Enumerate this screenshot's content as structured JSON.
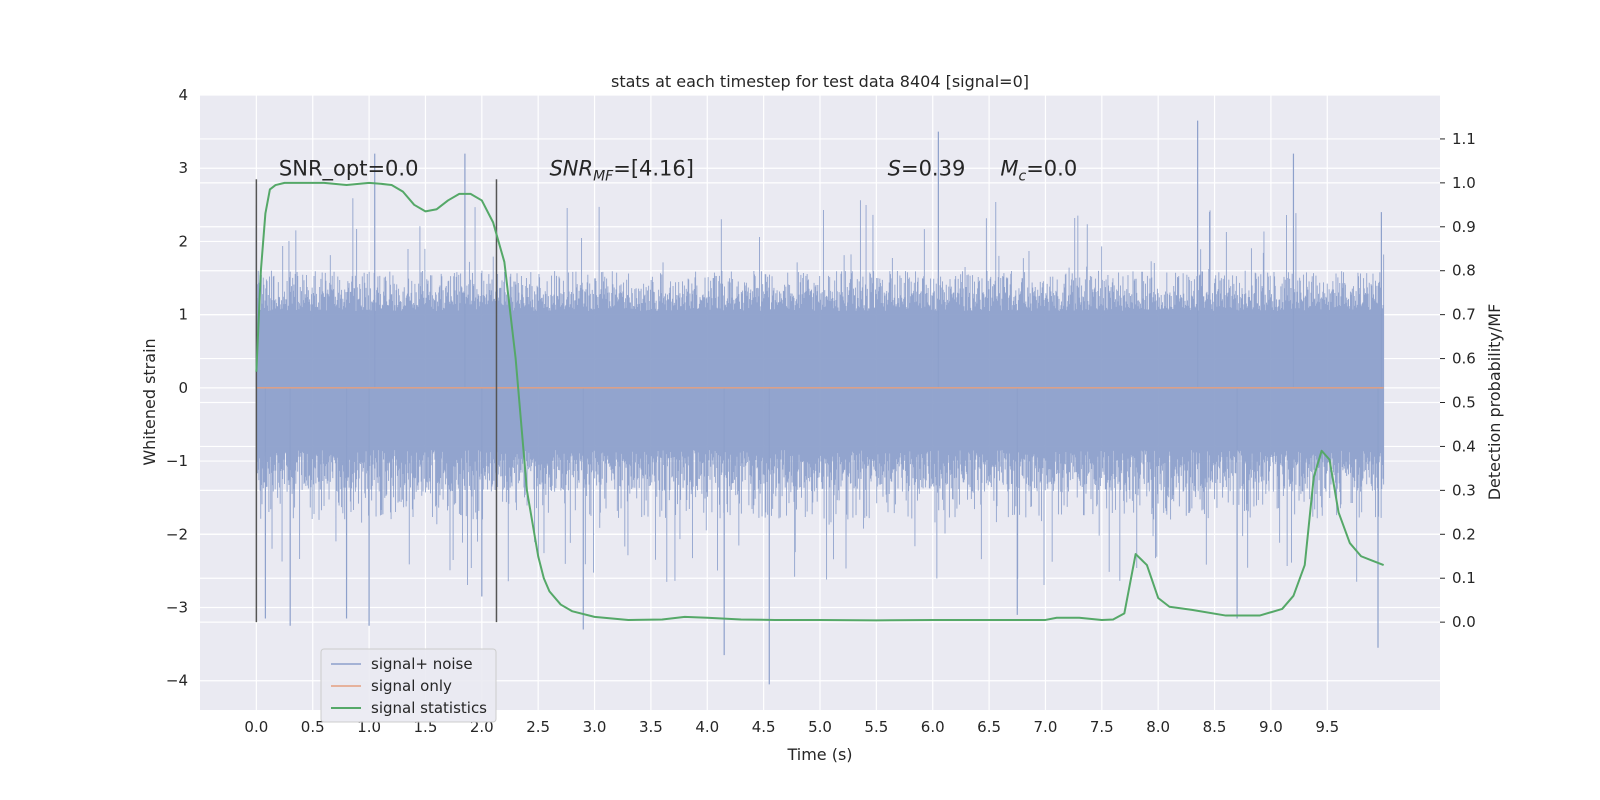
{
  "chart_data": {
    "type": "line",
    "title": "stats at each timestep for test data 8404 [signal=0]",
    "xlabel": "Time (s)",
    "ylabel": "Whitened strain",
    "y2label": "Detection probability/MF",
    "xlim": [
      -0.5,
      10.5
    ],
    "ylim": [
      -4.4,
      4.0
    ],
    "y2lim": [
      -0.2,
      1.2
    ],
    "x_ticks": [
      0.0,
      0.5,
      1.0,
      1.5,
      2.0,
      2.5,
      3.0,
      3.5,
      4.0,
      4.5,
      5.0,
      5.5,
      6.0,
      6.5,
      7.0,
      7.5,
      8.0,
      8.5,
      9.0,
      9.5
    ],
    "x_tick_labels": [
      "0.0",
      "0.5",
      "1.0",
      "1.5",
      "2.0",
      "2.5",
      "3.0",
      "3.5",
      "4.0",
      "4.5",
      "5.0",
      "5.5",
      "6.0",
      "6.5",
      "7.0",
      "7.5",
      "8.0",
      "8.5",
      "9.0",
      "9.5"
    ],
    "y_ticks": [
      -4,
      -3,
      -2,
      -1,
      0,
      1,
      2,
      3,
      4
    ],
    "y_tick_labels": [
      "−4",
      "−3",
      "−2",
      "−1",
      "0",
      "1",
      "2",
      "3",
      "4"
    ],
    "y2_ticks": [
      0.0,
      0.1,
      0.2,
      0.3,
      0.4,
      0.5,
      0.6,
      0.7,
      0.8,
      0.9,
      1.0,
      1.1
    ],
    "y2_tick_labels": [
      "0.0",
      "0.1",
      "0.2",
      "0.3",
      "0.4",
      "0.5",
      "0.6",
      "0.7",
      "0.8",
      "0.9",
      "1.0",
      "1.1"
    ],
    "grid": true,
    "legend_position": "lower-left",
    "annotations": [
      {
        "text": "SNR_opt=0.0",
        "x": 0.2,
        "y": 2.9
      },
      {
        "text": "SNR",
        "sub": "MF",
        "suffix": "=[4.16]",
        "italic_prefix": true,
        "x": 2.6,
        "y": 2.9
      },
      {
        "text": "S",
        "suffix": "=0.39",
        "italic_prefix": true,
        "x": 5.6,
        "y": 2.9
      },
      {
        "text": "M",
        "sub": "c",
        "suffix": "=0.0",
        "italic_prefix": true,
        "x": 6.6,
        "y": 2.9
      }
    ],
    "vertical_markers": [
      {
        "x": 0.0,
        "y_from": -3.2,
        "y_to": 2.85
      },
      {
        "x": 2.13,
        "y_from": -3.2,
        "y_to": 2.85
      }
    ],
    "series": [
      {
        "name": "signal+ noise",
        "color": "#8da0cb",
        "axis": "left",
        "kind": "noise",
        "x_range": [
          0.0,
          10.0
        ],
        "band_typical": [
          -0.85,
          1.05
        ],
        "band_extent": [
          -1.8,
          1.6
        ],
        "spikes": [
          {
            "x": 0.0,
            "y": 2.2
          },
          {
            "x": 0.08,
            "y": -3.15
          },
          {
            "x": 0.3,
            "y": -3.25
          },
          {
            "x": 0.8,
            "y": -3.15
          },
          {
            "x": 1.0,
            "y": -3.25
          },
          {
            "x": 1.05,
            "y": 3.2
          },
          {
            "x": 1.85,
            "y": 3.2
          },
          {
            "x": 2.0,
            "y": -2.85
          },
          {
            "x": 2.9,
            "y": -3.3
          },
          {
            "x": 4.15,
            "y": -3.65
          },
          {
            "x": 4.55,
            "y": -4.05
          },
          {
            "x": 6.05,
            "y": 3.5
          },
          {
            "x": 6.75,
            "y": -3.1
          },
          {
            "x": 8.35,
            "y": 3.65
          },
          {
            "x": 8.7,
            "y": -3.15
          },
          {
            "x": 9.2,
            "y": 3.2
          },
          {
            "x": 9.95,
            "y": -3.55
          },
          {
            "x": 9.98,
            "y": 2.4
          }
        ]
      },
      {
        "name": "signal only",
        "color": "#e5a07f",
        "axis": "left",
        "x": [
          0.0,
          10.0
        ],
        "y": [
          0.0,
          0.0
        ]
      },
      {
        "name": "signal statistics",
        "color": "#55a868",
        "axis": "right",
        "x": [
          0.0,
          0.04,
          0.08,
          0.12,
          0.17,
          0.25,
          0.4,
          0.6,
          0.8,
          1.0,
          1.1,
          1.2,
          1.3,
          1.4,
          1.5,
          1.6,
          1.7,
          1.8,
          1.9,
          2.0,
          2.1,
          2.2,
          2.3,
          2.4,
          2.5,
          2.55,
          2.6,
          2.7,
          2.8,
          3.0,
          3.3,
          3.6,
          3.8,
          4.0,
          4.3,
          4.6,
          5.0,
          5.5,
          6.0,
          6.5,
          7.0,
          7.1,
          7.3,
          7.5,
          7.6,
          7.7,
          7.8,
          7.9,
          8.0,
          8.1,
          8.3,
          8.6,
          8.9,
          9.1,
          9.2,
          9.3,
          9.38,
          9.45,
          9.52,
          9.6,
          9.7,
          9.8,
          9.9,
          10.0
        ],
        "y": [
          0.57,
          0.8,
          0.93,
          0.985,
          0.995,
          1.0,
          1.0,
          1.0,
          0.995,
          1.0,
          0.998,
          0.995,
          0.98,
          0.95,
          0.935,
          0.94,
          0.96,
          0.975,
          0.975,
          0.96,
          0.91,
          0.82,
          0.6,
          0.3,
          0.15,
          0.1,
          0.07,
          0.04,
          0.025,
          0.012,
          0.005,
          0.006,
          0.012,
          0.01,
          0.006,
          0.005,
          0.005,
          0.004,
          0.005,
          0.005,
          0.005,
          0.01,
          0.01,
          0.005,
          0.006,
          0.02,
          0.155,
          0.13,
          0.055,
          0.035,
          0.028,
          0.015,
          0.015,
          0.03,
          0.06,
          0.13,
          0.33,
          0.39,
          0.37,
          0.25,
          0.18,
          0.15,
          0.14,
          0.13
        ]
      }
    ]
  }
}
